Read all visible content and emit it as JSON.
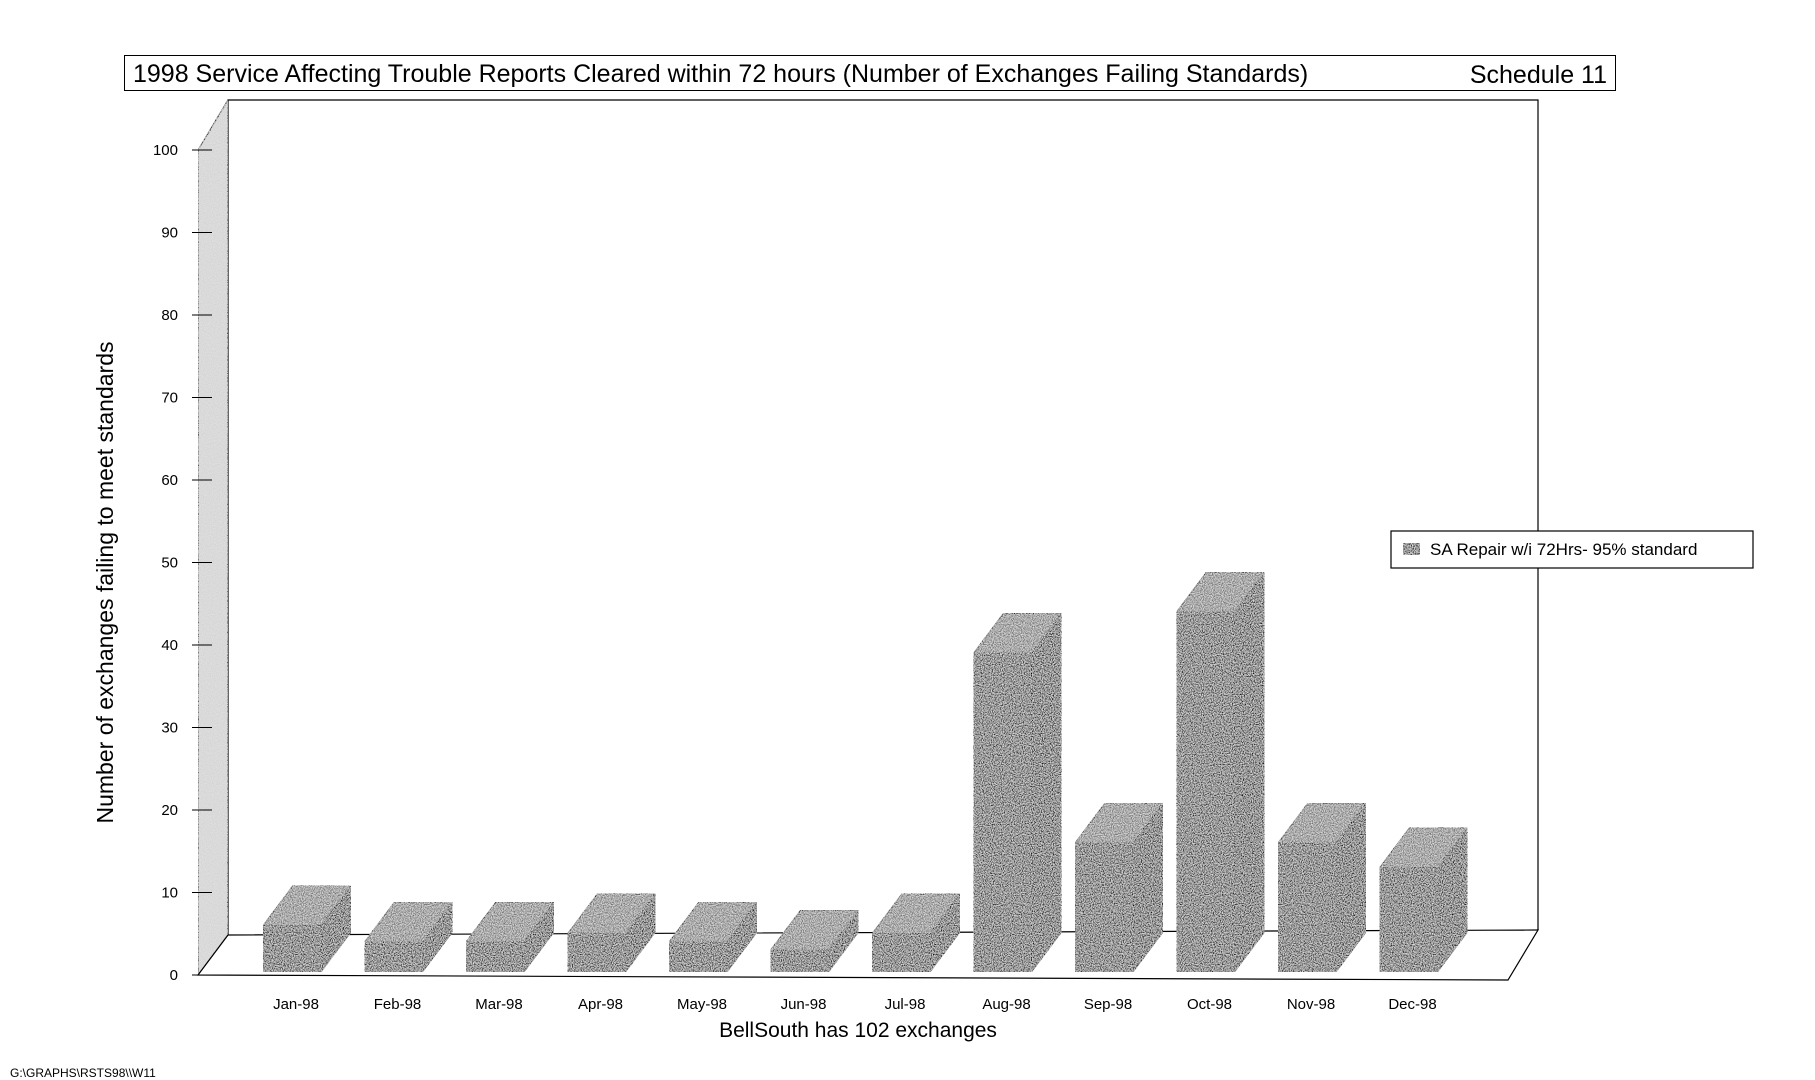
{
  "chart_data": {
    "type": "bar",
    "title": "1998  Service Affecting Trouble Reports Cleared  within 72 hours (Number of Exchanges Failing  Standards)",
    "schedule": "Schedule 11",
    "xlabel": "BellSouth has 102 exchanges",
    "ylabel": "Number of exchanges failing to meet standards",
    "ylim": [
      0,
      100
    ],
    "yticks": [
      "0",
      "10",
      "20",
      "30",
      "40",
      "50",
      "60",
      "70",
      "80",
      "90",
      "100"
    ],
    "categories": [
      "Jan-98",
      "Feb-98",
      "Mar-98",
      "Apr-98",
      "May-98",
      "Jun-98",
      "Jul-98",
      "Aug-98",
      "Sep-98",
      "Oct-98",
      "Nov-98",
      "Dec-98"
    ],
    "series": [
      {
        "name": "SA Repair w/i 72Hrs-  95% standard",
        "values": [
          6,
          4,
          4,
          5,
          4,
          3,
          5,
          39,
          16,
          44,
          16,
          13
        ]
      }
    ],
    "legend_position": "right",
    "style": "3d",
    "colors": {
      "bar": "#262626",
      "bar_top": "#6e6e6e",
      "bar_side": "#121212",
      "wall": "#d4d4d4"
    }
  },
  "footer": "G:\\GRAPHS\\RSTS98\\\\W11"
}
